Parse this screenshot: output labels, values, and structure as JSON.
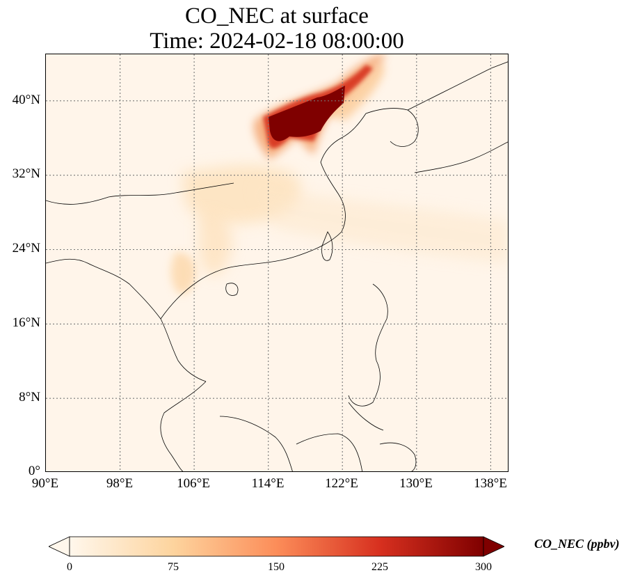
{
  "title": {
    "line1": "CO_NEC at surface",
    "line2": "Time: 2024-02-18 08:00:00"
  },
  "map": {
    "lon_range": [
      90,
      140
    ],
    "lat_range": [
      0,
      45
    ],
    "lat_ticks": [
      {
        "value": 0,
        "label": "0°"
      },
      {
        "value": 8,
        "label": "8°N"
      },
      {
        "value": 16,
        "label": "16°N"
      },
      {
        "value": 24,
        "label": "24°N"
      },
      {
        "value": 32,
        "label": "32°N"
      },
      {
        "value": 40,
        "label": "40°N"
      }
    ],
    "lon_ticks": [
      {
        "value": 90,
        "label": "90°E"
      },
      {
        "value": 98,
        "label": "98°E"
      },
      {
        "value": 106,
        "label": "106°E"
      },
      {
        "value": 114,
        "label": "114°E"
      },
      {
        "value": 122,
        "label": "122°E"
      },
      {
        "value": 130,
        "label": "130°E"
      },
      {
        "value": 138,
        "label": "138°E"
      }
    ],
    "gridlines": "dotted",
    "background_color": "#fff5ea",
    "coastline_color": "#000000"
  },
  "colorbar": {
    "label": "CO_NEC (ppbv)",
    "colormap": "OrRd",
    "min": 0,
    "max": 300,
    "extend": "both",
    "ticks": [
      {
        "value": 0,
        "label": "0"
      },
      {
        "value": 75,
        "label": "75"
      },
      {
        "value": 150,
        "label": "150"
      },
      {
        "value": 225,
        "label": "225"
      },
      {
        "value": 300,
        "label": "300"
      }
    ],
    "colors": [
      "#fff7ec",
      "#fdd49e",
      "#fc8d59",
      "#d7301f",
      "#7f0000"
    ]
  }
}
